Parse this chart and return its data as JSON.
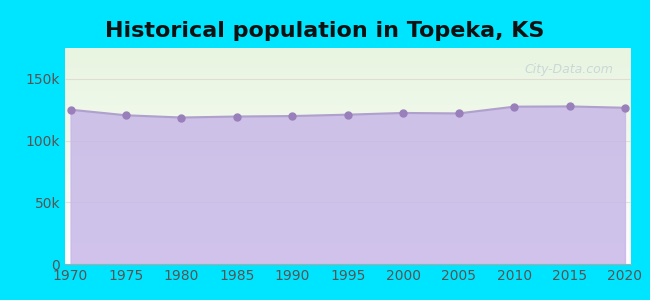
{
  "title": "Historical population in Topeka, KS",
  "years": [
    1970,
    1975,
    1980,
    1985,
    1990,
    1995,
    2000,
    2005,
    2010,
    2015,
    2020
  ],
  "population": [
    125011,
    120500,
    118690,
    119500,
    119883,
    121000,
    122377,
    122000,
    127473,
    127679,
    126587
  ],
  "line_color": "#b0a0cc",
  "fill_color": "#c8b8e8",
  "fill_alpha": 0.85,
  "marker_color": "#9980bb",
  "marker_size": 5,
  "background_outer": "#00e5ff",
  "plot_bg_top": "#e8f5e0",
  "plot_bg_bottom": "#ffffff",
  "ylim": [
    0,
    175000
  ],
  "yticks": [
    0,
    50000,
    100000,
    150000
  ],
  "ytick_labels": [
    "0",
    "50k",
    "100k",
    "150k"
  ],
  "xticks": [
    1970,
    1975,
    1980,
    1985,
    1990,
    1995,
    2000,
    2005,
    2010,
    2015,
    2020
  ],
  "title_fontsize": 16,
  "tick_fontsize": 10,
  "tick_color": "#555555",
  "watermark_text": "City-Data.com",
  "watermark_color": "#aabbcc",
  "watermark_alpha": 0.5,
  "grid_color": "#ddcccc",
  "grid_alpha": 0.6
}
